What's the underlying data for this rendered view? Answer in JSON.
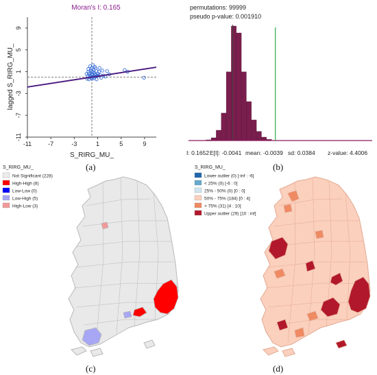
{
  "panels": [
    {
      "label": "(a)",
      "chart_data": {
        "type": "scatter",
        "title": "Moran's I: 0.165",
        "xlabel": "S_RIRG_MU_",
        "ylabel": "lagged S_RIRG_MU_",
        "xlim": [
          -11,
          11
        ],
        "ylim": [
          -11,
          11
        ],
        "xticks": [
          "-11",
          "-7",
          "-3",
          "1",
          "5",
          "9"
        ],
        "yticks": [
          "-11",
          "-7",
          "-3",
          "1",
          "5",
          "9"
        ],
        "slope": 0.165,
        "intercept": 0.0,
        "points": [
          [
            -0.3,
            2.0
          ],
          [
            0.2,
            2.2
          ],
          [
            0.5,
            1.9
          ],
          [
            -0.1,
            1.6
          ],
          [
            0.3,
            1.3
          ],
          [
            0.8,
            1.1
          ],
          [
            1.2,
            1.0
          ],
          [
            1.8,
            1.2
          ],
          [
            2.6,
            1.1
          ],
          [
            5.6,
            1.3
          ],
          [
            6.1,
            1.0
          ],
          [
            8.9,
            -0.1
          ],
          [
            -0.6,
            1.0
          ],
          [
            -0.5,
            0.7
          ],
          [
            -0.4,
            0.5
          ],
          [
            -0.3,
            0.3
          ],
          [
            -0.2,
            0.1
          ],
          [
            -0.1,
            -0.1
          ],
          [
            0.0,
            0.4
          ],
          [
            0.1,
            0.6
          ],
          [
            0.2,
            0.0
          ],
          [
            0.3,
            0.2
          ],
          [
            0.4,
            -0.2
          ],
          [
            0.5,
            0.5
          ],
          [
            0.6,
            0.1
          ],
          [
            0.7,
            0.4
          ],
          [
            0.9,
            0.2
          ],
          [
            1.0,
            0.6
          ],
          [
            1.4,
            0.4
          ],
          [
            1.6,
            -0.1
          ],
          [
            2.0,
            0.3
          ],
          [
            2.3,
            0.1
          ],
          [
            -0.7,
            0.2
          ],
          [
            -0.8,
            -0.3
          ],
          [
            -0.5,
            -0.4
          ],
          [
            0.0,
            -0.3
          ],
          [
            0.2,
            0.9
          ],
          [
            0.0,
            1.1
          ],
          [
            -0.2,
            1.3
          ],
          [
            0.4,
            0.8
          ],
          [
            1.1,
            0.3
          ],
          [
            3.0,
            0.5
          ],
          [
            -0.9,
            0.6
          ],
          [
            0.8,
            -0.4
          ],
          [
            -0.6,
            1.5
          ],
          [
            0.6,
            1.6
          ],
          [
            1.3,
            1.7
          ],
          [
            -0.4,
            0.0
          ]
        ]
      }
    },
    {
      "label": "(b)",
      "chart_data": {
        "type": "histogram",
        "permutations_text": "permutations: 99999",
        "pvalue_text": "pseudo p-value: 0.001910",
        "footer": [
          "I: 0.1652",
          "E[I]: -0.0041",
          "mean: -0.0039",
          "sd: 0.0384",
          "z-value: 4.4006"
        ],
        "observed_I": 0.1652,
        "expected_I": -0.0041,
        "xlim": [
          -0.18,
          0.55
        ],
        "bins": [
          {
            "x": -0.12,
            "y": 1
          },
          {
            "x": -0.1,
            "y": 3
          },
          {
            "x": -0.08,
            "y": 12
          },
          {
            "x": -0.06,
            "y": 45
          },
          {
            "x": -0.04,
            "y": 120
          },
          {
            "x": -0.02,
            "y": 300
          },
          {
            "x": 0.0,
            "y": 500
          },
          {
            "x": 0.02,
            "y": 470
          },
          {
            "x": 0.04,
            "y": 300
          },
          {
            "x": 0.06,
            "y": 170
          },
          {
            "x": 0.08,
            "y": 90
          },
          {
            "x": 0.1,
            "y": 40
          },
          {
            "x": 0.12,
            "y": 15
          },
          {
            "x": 0.14,
            "y": 5
          }
        ]
      }
    },
    {
      "label": "(c)",
      "map": {
        "title": "S_RIRG_MU_",
        "legend": [
          {
            "label": "Not Significant (228)",
            "color": "#ececec"
          },
          {
            "label": "High-High (8)",
            "color": "#ff0000"
          },
          {
            "label": "Low-Low (0)",
            "color": "#0000ff"
          },
          {
            "label": "Low-High (5)",
            "color": "#a7a7f5"
          },
          {
            "label": "High-Low (3)",
            "color": "#f29999"
          }
        ],
        "base_color": "#e9e9e9",
        "border_color": "#b8b8b8"
      }
    },
    {
      "label": "(d)",
      "map": {
        "title": "S_RIRG_MU_",
        "legend": [
          {
            "label": "Lower outlier (0)  [-inf : -6]",
            "color": "#2166ac"
          },
          {
            "label": "< 25% (0)  [-6 : 0]",
            "color": "#67a9cf"
          },
          {
            "label": "25% - 50% (0)  [0 : 0]",
            "color": "#d1e5f0"
          },
          {
            "label": "50% - 75% (184)  [0 : 4]",
            "color": "#fbd0bd"
          },
          {
            "label": "> 75% (31)  [4 : 10]",
            "color": "#ef8a62"
          },
          {
            "label": "Upper outlier (29)  [10 : inf]",
            "color": "#b2182b"
          }
        ],
        "base_color": "#fbd0bd",
        "border_color": "#e2a992"
      }
    }
  ]
}
